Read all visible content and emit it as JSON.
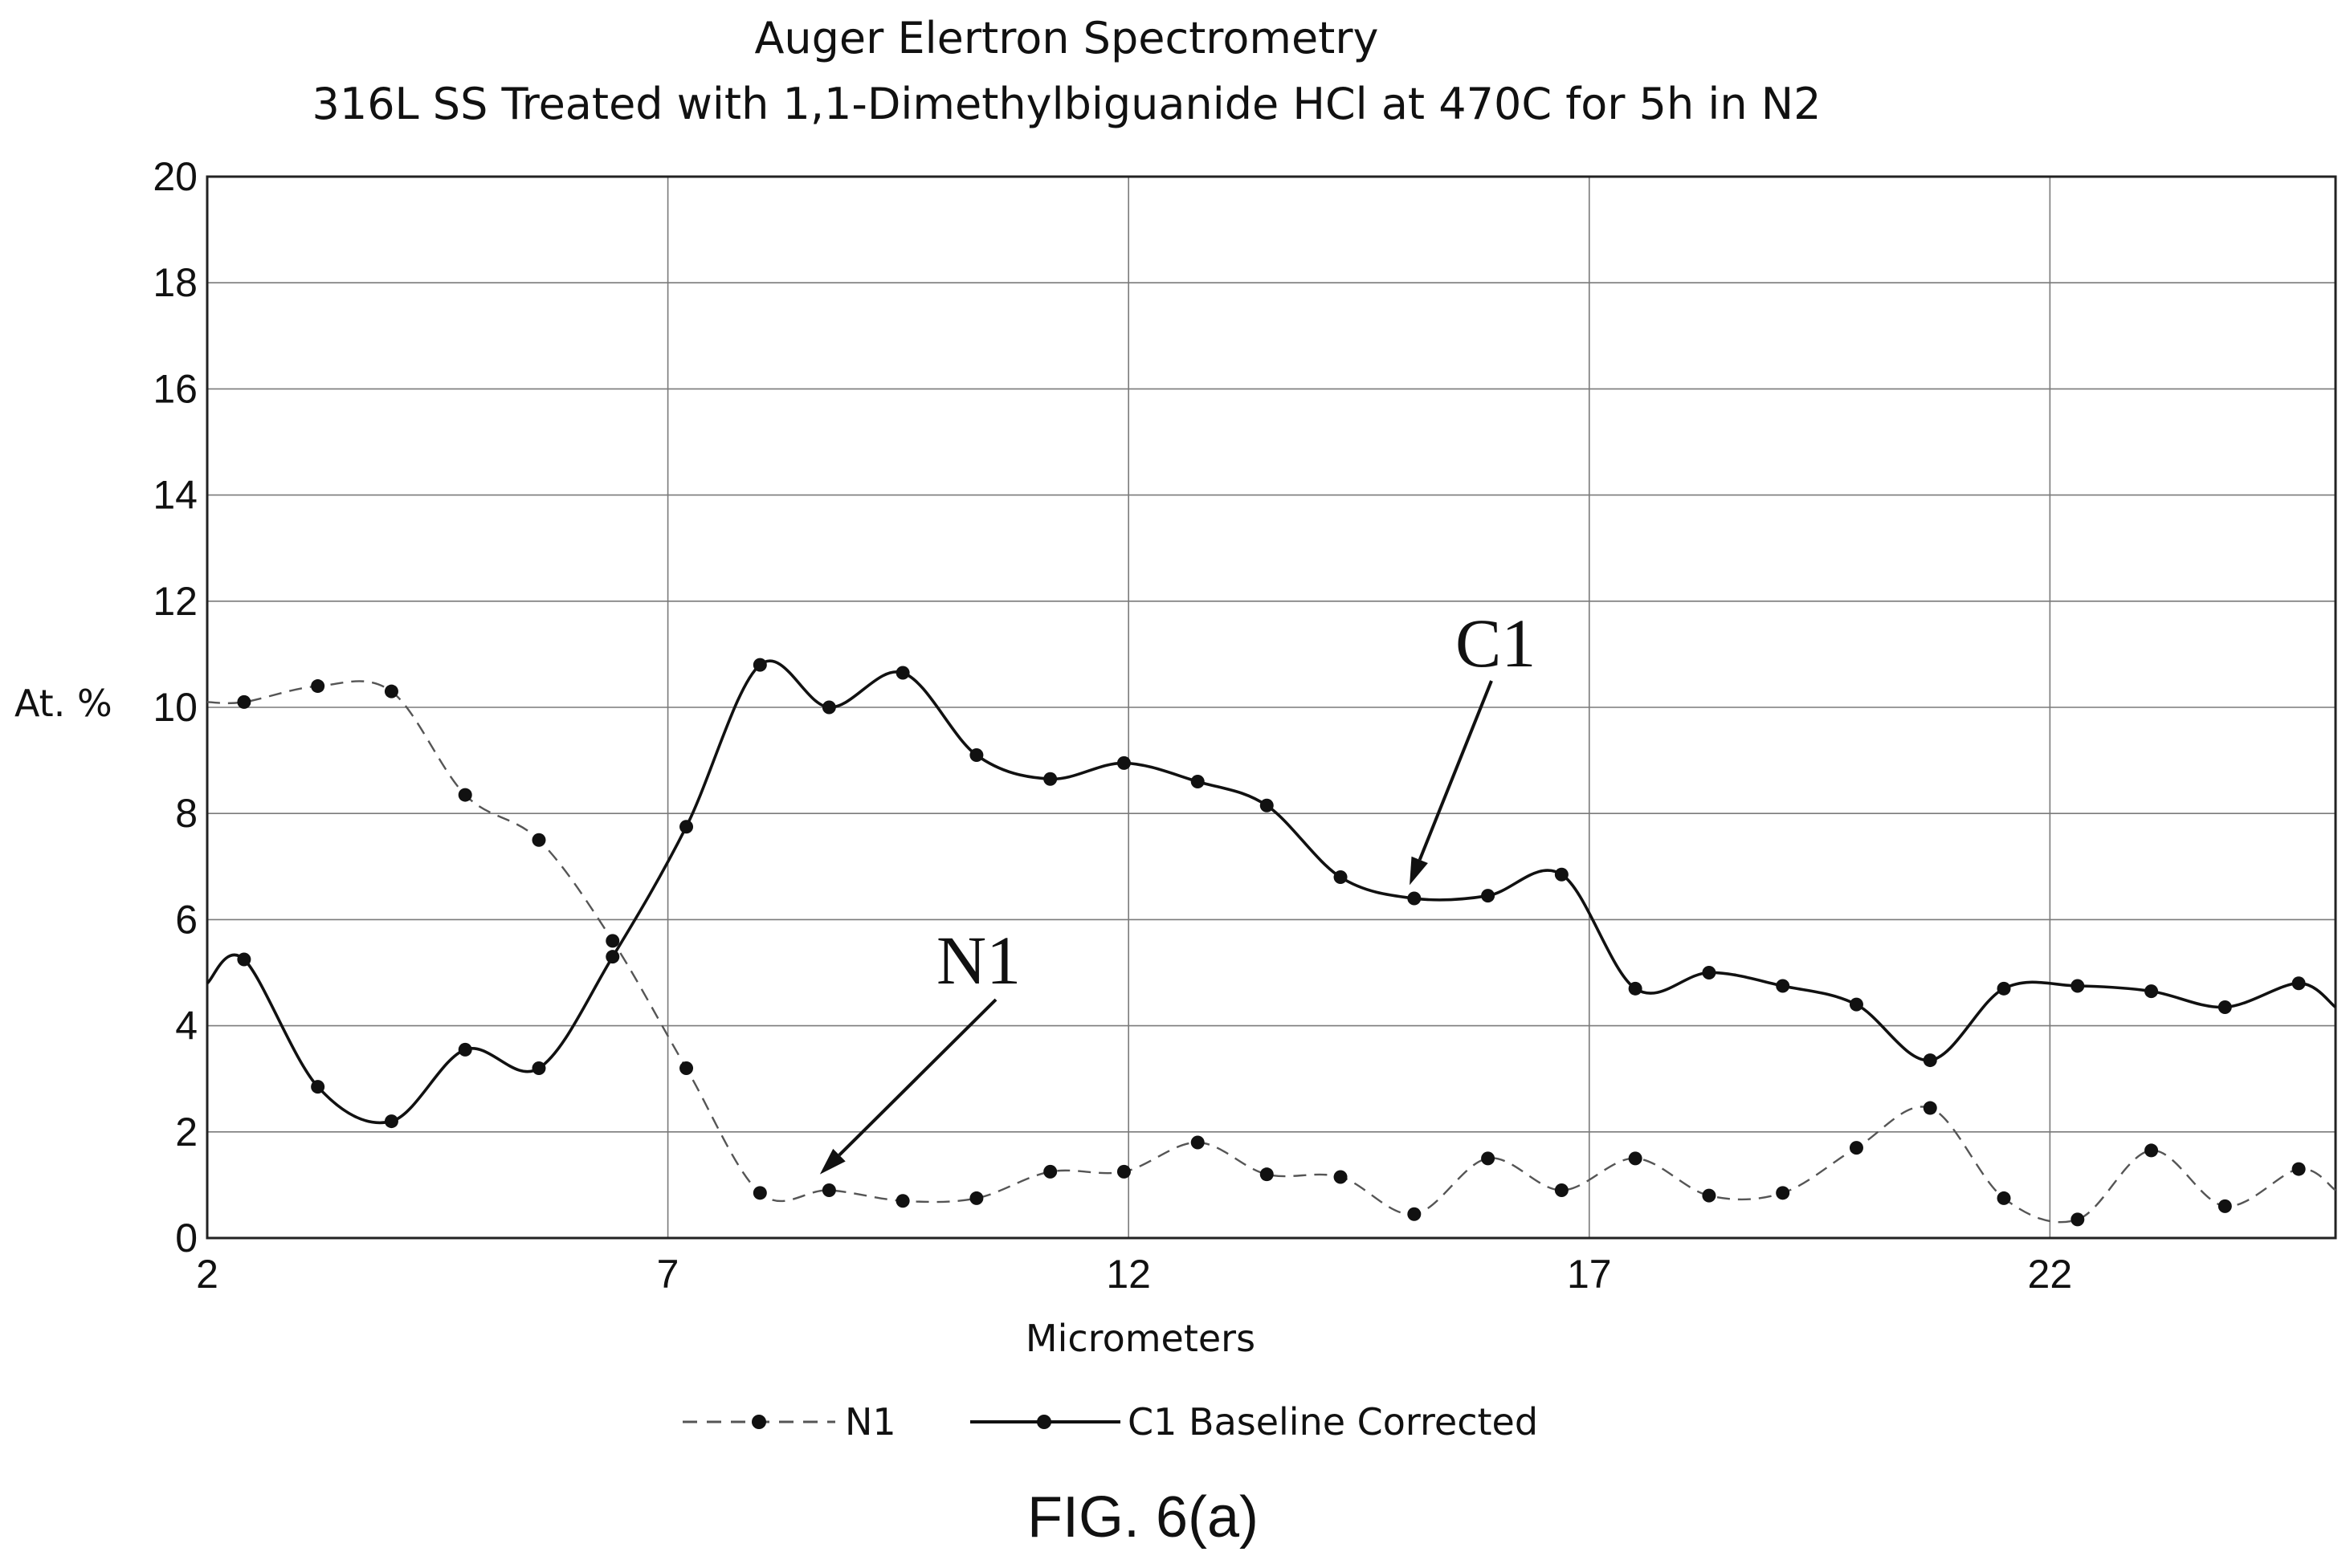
{
  "chart_data": {
    "type": "line",
    "title": "Auger Elertron Spectrometry",
    "subtitle": "316L SS Treated with 1,1-Dimethylbiguanide HCl at 470C for 5h in N2",
    "xlabel": "Micrometers",
    "ylabel": "At. %",
    "xlim": [
      2,
      25.1
    ],
    "ylim": [
      0,
      20
    ],
    "xticks": [
      2,
      7,
      12,
      17,
      22
    ],
    "yticks": [
      0,
      2,
      4,
      6,
      8,
      10,
      12,
      14,
      16,
      18,
      20
    ],
    "grid": true,
    "legend_position": "bottom",
    "series": [
      {
        "name": "N1",
        "style": "dashed",
        "color": "#555555",
        "x": [
          2.4,
          3.2,
          4.0,
          4.8,
          5.6,
          6.4,
          7.2,
          8.0,
          8.75,
          9.55,
          10.35,
          11.15,
          11.95,
          12.75,
          13.5,
          14.3,
          15.1,
          15.9,
          16.7,
          17.5,
          18.3,
          19.1,
          19.9,
          20.7,
          21.5,
          22.3,
          23.1,
          23.9,
          24.7
        ],
        "y": [
          10.1,
          10.4,
          10.3,
          8.35,
          7.5,
          5.6,
          3.2,
          0.85,
          0.9,
          0.7,
          0.75,
          1.25,
          1.25,
          1.8,
          1.2,
          1.15,
          0.45,
          1.5,
          0.9,
          1.5,
          0.8,
          0.85,
          1.7,
          2.45,
          0.75,
          0.35,
          1.65,
          0.6,
          1.3
        ],
        "start": [
          2.0,
          10.1
        ],
        "end": [
          25.1,
          0.9
        ]
      },
      {
        "name": "C1 Baseline Corrected",
        "style": "solid",
        "color": "#111111",
        "x": [
          2.4,
          3.2,
          4.0,
          4.8,
          5.6,
          6.4,
          7.2,
          8.0,
          8.75,
          9.55,
          10.35,
          11.15,
          11.95,
          12.75,
          13.5,
          14.3,
          15.1,
          15.9,
          16.7,
          17.5,
          18.3,
          19.1,
          19.9,
          20.7,
          21.5,
          22.3,
          23.1,
          23.9,
          24.7
        ],
        "y": [
          5.25,
          2.85,
          2.2,
          3.55,
          3.2,
          5.3,
          7.75,
          10.8,
          10.0,
          10.65,
          9.1,
          8.65,
          8.95,
          8.6,
          8.15,
          6.8,
          6.4,
          6.45,
          6.85,
          4.7,
          5.0,
          4.75,
          4.4,
          3.35,
          4.7,
          4.75,
          4.65,
          4.35,
          4.8
        ],
        "start": [
          2.0,
          4.8
        ],
        "end": [
          25.1,
          4.35
        ]
      }
    ],
    "annotations": [
      {
        "text": "C1",
        "target": [
          15.05,
          6.65
        ]
      },
      {
        "text": "N1",
        "target": [
          8.65,
          1.2
        ]
      }
    ]
  },
  "figure_label": "FIG. 6(a)"
}
